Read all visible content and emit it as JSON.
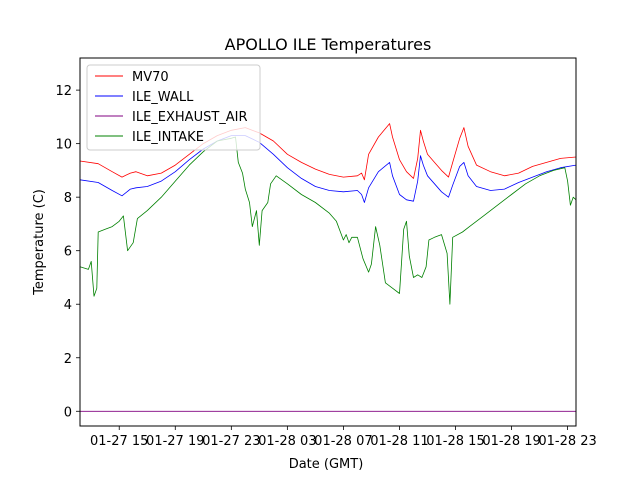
{
  "chart_data": {
    "type": "line",
    "title": "APOLLO ILE Temperatures",
    "xlabel": "Date (GMT)",
    "ylabel": "Temperature (C)",
    "x_unit": "hours since 01-27 00:00 GMT",
    "xlim": [
      12.2,
      47.6
    ],
    "ylim": [
      -0.55,
      13.2
    ],
    "x_ticks": [
      {
        "x": 15,
        "label": "01-27 15"
      },
      {
        "x": 19,
        "label": "01-27 19"
      },
      {
        "x": 23,
        "label": "01-27 23"
      },
      {
        "x": 27,
        "label": "01-28 03"
      },
      {
        "x": 31,
        "label": "01-28 07"
      },
      {
        "x": 35,
        "label": "01-28 11"
      },
      {
        "x": 39,
        "label": "01-28 15"
      },
      {
        "x": 43,
        "label": "01-28 19"
      },
      {
        "x": 47,
        "label": "01-28 23"
      }
    ],
    "y_ticks": [
      0,
      2,
      4,
      6,
      8,
      10,
      12
    ],
    "grid": false,
    "legend": "top-left",
    "series": [
      {
        "name": "MV70",
        "color": "#ff0000",
        "points": [
          [
            12.2,
            9.35
          ],
          [
            13.5,
            9.25
          ],
          [
            14.5,
            8.95
          ],
          [
            15.2,
            8.75
          ],
          [
            15.8,
            8.9
          ],
          [
            16.2,
            8.95
          ],
          [
            17,
            8.8
          ],
          [
            18,
            8.9
          ],
          [
            19,
            9.2
          ],
          [
            20,
            9.6
          ],
          [
            21,
            10
          ],
          [
            22,
            10.3
          ],
          [
            23,
            10.5
          ],
          [
            24,
            10.6
          ],
          [
            25,
            10.4
          ],
          [
            26,
            10.1
          ],
          [
            27,
            9.6
          ],
          [
            28,
            9.3
          ],
          [
            29,
            9.05
          ],
          [
            30,
            8.85
          ],
          [
            31,
            8.75
          ],
          [
            32,
            8.8
          ],
          [
            32.3,
            8.9
          ],
          [
            32.5,
            8.65
          ],
          [
            32.8,
            9.6
          ],
          [
            33.5,
            10.25
          ],
          [
            34.3,
            10.75
          ],
          [
            34.5,
            10.25
          ],
          [
            35,
            9.4
          ],
          [
            35.5,
            8.95
          ],
          [
            36,
            8.7
          ],
          [
            36.3,
            9.45
          ],
          [
            36.5,
            10.5
          ],
          [
            36.7,
            10.1
          ],
          [
            37,
            9.6
          ],
          [
            37.5,
            9.3
          ],
          [
            38,
            9
          ],
          [
            38.5,
            8.75
          ],
          [
            38.8,
            9.3
          ],
          [
            39.3,
            10.2
          ],
          [
            39.6,
            10.6
          ],
          [
            39.9,
            9.9
          ],
          [
            40.5,
            9.2
          ],
          [
            41.5,
            8.95
          ],
          [
            42.5,
            8.8
          ],
          [
            43.5,
            8.9
          ],
          [
            44.5,
            9.15
          ],
          [
            45.5,
            9.3
          ],
          [
            46.5,
            9.45
          ],
          [
            47.6,
            9.5
          ]
        ]
      },
      {
        "name": "ILE_WALL",
        "color": "#0000ff",
        "points": [
          [
            12.2,
            8.65
          ],
          [
            13.5,
            8.55
          ],
          [
            14.5,
            8.25
          ],
          [
            15.2,
            8.05
          ],
          [
            15.8,
            8.3
          ],
          [
            16.2,
            8.35
          ],
          [
            17,
            8.4
          ],
          [
            18,
            8.6
          ],
          [
            19,
            8.95
          ],
          [
            20,
            9.4
          ],
          [
            21,
            9.8
          ],
          [
            22,
            10.1
          ],
          [
            23,
            10.3
          ],
          [
            24,
            10.3
          ],
          [
            25,
            10.05
          ],
          [
            26,
            9.6
          ],
          [
            27,
            9.1
          ],
          [
            28,
            8.7
          ],
          [
            29,
            8.4
          ],
          [
            30,
            8.25
          ],
          [
            31,
            8.2
          ],
          [
            32,
            8.25
          ],
          [
            32.3,
            8.1
          ],
          [
            32.5,
            7.8
          ],
          [
            32.8,
            8.35
          ],
          [
            33.5,
            8.95
          ],
          [
            34.3,
            9.3
          ],
          [
            34.5,
            8.8
          ],
          [
            35,
            8.1
          ],
          [
            35.5,
            7.9
          ],
          [
            36,
            7.85
          ],
          [
            36.3,
            8.6
          ],
          [
            36.5,
            9.55
          ],
          [
            36.7,
            9.2
          ],
          [
            37,
            8.8
          ],
          [
            37.5,
            8.5
          ],
          [
            38,
            8.2
          ],
          [
            38.5,
            8
          ],
          [
            38.8,
            8.45
          ],
          [
            39.3,
            9.15
          ],
          [
            39.6,
            9.3
          ],
          [
            39.9,
            8.8
          ],
          [
            40.5,
            8.4
          ],
          [
            41.5,
            8.25
          ],
          [
            42.5,
            8.3
          ],
          [
            43.5,
            8.55
          ],
          [
            44.5,
            8.75
          ],
          [
            45.5,
            8.95
          ],
          [
            46.5,
            9.1
          ],
          [
            47.6,
            9.2
          ]
        ]
      },
      {
        "name": "ILE_EXHAUST_AIR",
        "color": "#800080",
        "points": [
          [
            12.2,
            0
          ],
          [
            47.6,
            0
          ]
        ]
      },
      {
        "name": "ILE_INTAKE",
        "color": "#008000",
        "points": [
          [
            12.2,
            5.4
          ],
          [
            12.8,
            5.3
          ],
          [
            13.0,
            5.6
          ],
          [
            13.2,
            4.3
          ],
          [
            13.4,
            4.6
          ],
          [
            13.5,
            6.7
          ],
          [
            14,
            6.8
          ],
          [
            14.5,
            6.9
          ],
          [
            15,
            7.1
          ],
          [
            15.3,
            7.3
          ],
          [
            15.6,
            6
          ],
          [
            16,
            6.3
          ],
          [
            16.3,
            7.2
          ],
          [
            17,
            7.5
          ],
          [
            18,
            8
          ],
          [
            19,
            8.6
          ],
          [
            20,
            9.2
          ],
          [
            21,
            9.7
          ],
          [
            22,
            10.1
          ],
          [
            23,
            10.2
          ],
          [
            23.3,
            10.25
          ],
          [
            23.5,
            9.3
          ],
          [
            23.8,
            8.9
          ],
          [
            24,
            8.3
          ],
          [
            24.3,
            7.8
          ],
          [
            24.5,
            6.9
          ],
          [
            24.8,
            7.5
          ],
          [
            25,
            6.2
          ],
          [
            25.2,
            7.5
          ],
          [
            25.6,
            7.8
          ],
          [
            25.8,
            8.5
          ],
          [
            26.2,
            8.8
          ],
          [
            27,
            8.5
          ],
          [
            28,
            8.1
          ],
          [
            29,
            7.8
          ],
          [
            30,
            7.4
          ],
          [
            30.5,
            7.1
          ],
          [
            31,
            6.4
          ],
          [
            31.2,
            6.6
          ],
          [
            31.4,
            6.3
          ],
          [
            31.6,
            6.5
          ],
          [
            32,
            6.5
          ],
          [
            32.4,
            5.7
          ],
          [
            32.8,
            5.2
          ],
          [
            33,
            5.5
          ],
          [
            33.3,
            6.9
          ],
          [
            33.6,
            6.2
          ],
          [
            34,
            4.8
          ],
          [
            34.5,
            4.6
          ],
          [
            35,
            4.4
          ],
          [
            35.3,
            6.8
          ],
          [
            35.5,
            7.1
          ],
          [
            35.7,
            5.8
          ],
          [
            36,
            5
          ],
          [
            36.3,
            5.1
          ],
          [
            36.6,
            5
          ],
          [
            36.9,
            5.4
          ],
          [
            37.1,
            6.4
          ],
          [
            37.5,
            6.5
          ],
          [
            38,
            6.6
          ],
          [
            38.4,
            5.9
          ],
          [
            38.6,
            4.0
          ],
          [
            38.8,
            6.5
          ],
          [
            39.5,
            6.7
          ],
          [
            40,
            6.9
          ],
          [
            41,
            7.3
          ],
          [
            42,
            7.7
          ],
          [
            43,
            8.1
          ],
          [
            44,
            8.5
          ],
          [
            45,
            8.8
          ],
          [
            46,
            9
          ],
          [
            46.8,
            9.1
          ],
          [
            47.0,
            8.6
          ],
          [
            47.2,
            7.7
          ],
          [
            47.4,
            8
          ],
          [
            47.6,
            7.9
          ]
        ]
      }
    ]
  }
}
